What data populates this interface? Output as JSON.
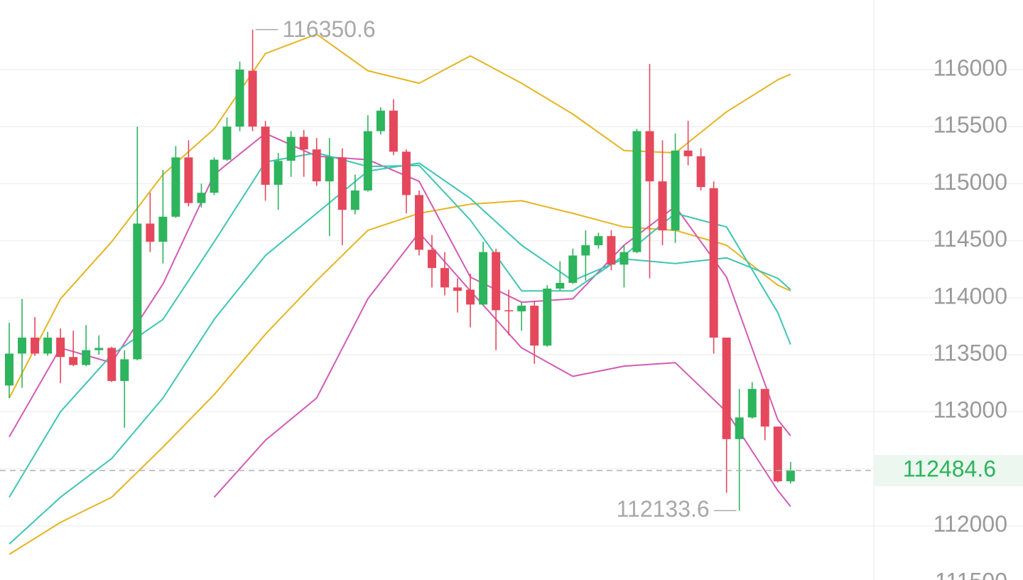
{
  "chart_data": {
    "type": "candlestick",
    "open": [
      113230,
      113510,
      113650,
      113510,
      113650,
      113480,
      113410,
      113540,
      113560,
      113270,
      113460,
      114650,
      114490,
      114710,
      115230,
      114830,
      114920,
      115210,
      115500,
      115990,
      115500,
      114990,
      115200,
      115410,
      115300,
      115020,
      115230,
      114770,
      114940,
      115460,
      115640,
      115280,
      114900,
      114420,
      114260,
      114090,
      114070,
      113940,
      114400,
      113890,
      113880,
      113930,
      113580,
      114080,
      114130,
      114370,
      114460,
      114540,
      114290,
      114400,
      115460,
      115020,
      114590,
      115290,
      115240,
      114960,
      113650,
      112760,
      112950,
      113200,
      112870,
      112390
    ],
    "high": [
      113780,
      113990,
      113830,
      113700,
      113730,
      113710,
      113760,
      113670,
      113570,
      113540,
      115500,
      114920,
      115120,
      115330,
      115380,
      115000,
      115230,
      115580,
      116070,
      116350.6,
      115550,
      115270,
      115460,
      115470,
      115400,
      115400,
      115310,
      115080,
      115600,
      115670,
      115740,
      115300,
      114940,
      114550,
      114400,
      114170,
      114210,
      114490,
      114430,
      114070,
      113960,
      113970,
      114110,
      114320,
      114430,
      114590,
      114570,
      114590,
      114460,
      115480,
      116050,
      115380,
      115440,
      115550,
      115310,
      115020,
      113650,
      113200,
      113260,
      113200,
      112870,
      112560
    ],
    "low": [
      113120,
      113210,
      113490,
      113490,
      113250,
      113400,
      113400,
      113500,
      113260,
      112860,
      113450,
      114400,
      114300,
      114700,
      114800,
      114790,
      114900,
      115200,
      115460,
      115460,
      114850,
      114770,
      115060,
      115060,
      114980,
      114540,
      114460,
      114730,
      114930,
      115430,
      115250,
      114740,
      114370,
      114090,
      114020,
      113870,
      113740,
      113930,
      113540,
      113670,
      113710,
      113420,
      113570,
      114060,
      114120,
      114150,
      114430,
      114240,
      114090,
      114390,
      114170,
      114460,
      114480,
      115160,
      114940,
      113510,
      112290,
      112133.6,
      112940,
      112750,
      112380,
      112370
    ],
    "close": [
      113510,
      113650,
      113510,
      113650,
      113480,
      113410,
      113540,
      113560,
      113270,
      113460,
      114650,
      114490,
      114710,
      115230,
      114830,
      114920,
      115210,
      115500,
      116000,
      115500,
      114990,
      115200,
      115410,
      115300,
      115020,
      115230,
      114770,
      114940,
      115460,
      115640,
      115280,
      114900,
      114420,
      114260,
      114090,
      114060,
      113940,
      114400,
      113890,
      113880,
      113930,
      113580,
      114080,
      114130,
      114370,
      114460,
      114540,
      114290,
      114400,
      115460,
      115020,
      114590,
      115290,
      115240,
      114970,
      113650,
      112760,
      112950,
      113200,
      112870,
      112390,
      112484.6
    ],
    "up_color": "#2db45c",
    "down_color": "#e5485c",
    "ylim": [
      111500,
      116610
    ],
    "yticks": [
      111500,
      112000,
      112500,
      113000,
      113500,
      114000,
      114500,
      115000,
      115500,
      116000
    ],
    "grid": true,
    "last_price_line": true,
    "overlays": {
      "x": [
        0,
        4,
        8,
        12,
        16,
        20,
        24,
        28,
        32,
        36,
        40,
        44,
        48,
        52,
        56,
        60,
        61
      ],
      "series": [
        {
          "color": "#e6b422",
          "values": [
            113120,
            113990,
            114490,
            115080,
            115480,
            116140,
            116310,
            115990,
            115880,
            116120,
            115880,
            115610,
            115290,
            115270,
            115630,
            115910,
            115960
          ]
        },
        {
          "color": "#e6b422",
          "values": [
            111750,
            112030,
            112250,
            112690,
            113150,
            113680,
            114150,
            114590,
            114740,
            114820,
            114850,
            114740,
            114620,
            114590,
            114460,
            114110,
            114060
          ]
        },
        {
          "color": "#d35bb5",
          "values": [
            null,
            null,
            null,
            null,
            112250,
            112750,
            113120,
            113990,
            114570,
            114060,
            113560,
            113310,
            113400,
            113430,
            113000,
            112310,
            112170
          ]
        },
        {
          "color": "#d35bb5",
          "values": [
            112780,
            113560,
            113430,
            114120,
            115080,
            115440,
            115240,
            115210,
            115020,
            114180,
            113960,
            113990,
            114460,
            114800,
            114180,
            112930,
            112790
          ]
        },
        {
          "color": "#3ec6b2",
          "values": [
            112250,
            113000,
            113500,
            113810,
            114490,
            115190,
            115270,
            115150,
            115160,
            114680,
            114060,
            114060,
            114370,
            114740,
            114620,
            113870,
            113590
          ]
        },
        {
          "color": "#3ec6b2",
          "values": [
            111840,
            112250,
            112590,
            113120,
            113810,
            114370,
            114740,
            115110,
            115180,
            114870,
            114460,
            114150,
            114340,
            114300,
            114350,
            114170,
            114070
          ]
        }
      ]
    }
  }
}
